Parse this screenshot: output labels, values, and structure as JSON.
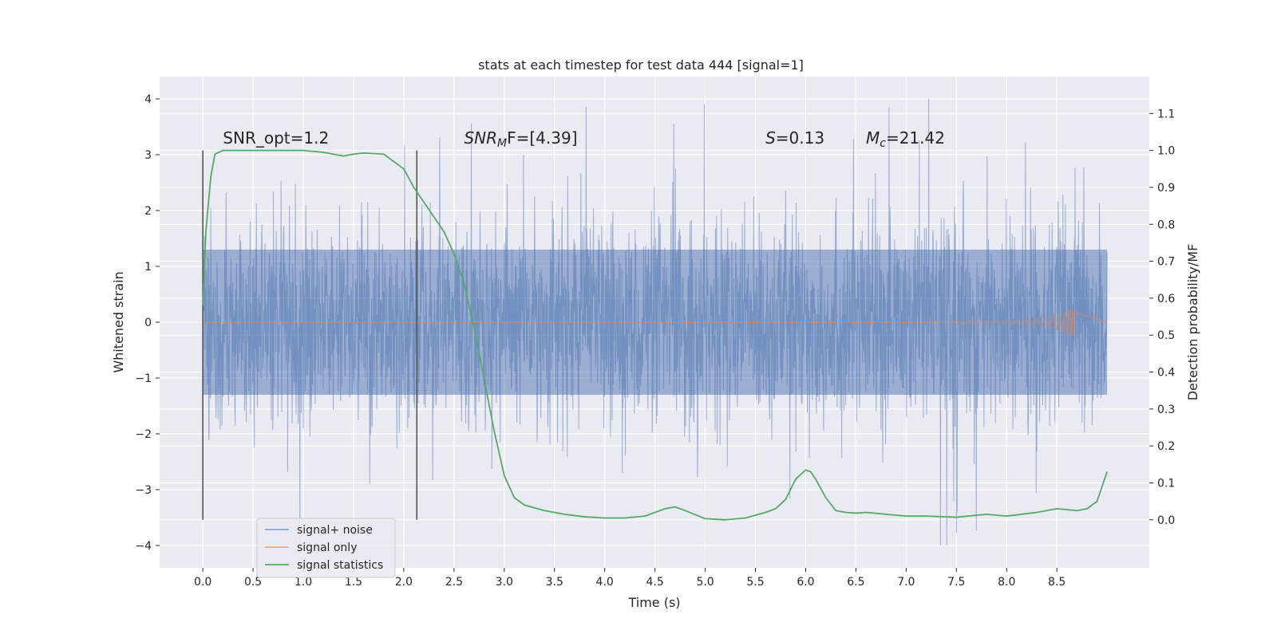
{
  "chart_data": {
    "type": "line",
    "title": "stats at each timestep for test data 444 [signal=1]",
    "xlabel": "Time (s)",
    "ylabel": "Whitened strain",
    "y2label": "Detection probability/MF",
    "xlim": [
      -0.43,
      9.42
    ],
    "ylim": [
      -4.4,
      4.4
    ],
    "y2lim": [
      -0.13,
      1.2
    ],
    "x_ticks": [
      "0.0",
      "0.5",
      "1.0",
      "1.5",
      "2.0",
      "2.5",
      "3.0",
      "3.5",
      "4.0",
      "4.5",
      "5.0",
      "5.5",
      "6.0",
      "6.5",
      "7.0",
      "7.5",
      "8.0",
      "8.5"
    ],
    "y_ticks": [
      "4",
      "3",
      "2",
      "1",
      "0",
      "−1",
      "−2",
      "−3",
      "−4"
    ],
    "y2_ticks": [
      "1.1",
      "1.0",
      "0.9",
      "0.8",
      "0.7",
      "0.6",
      "0.5",
      "0.4",
      "0.3",
      "0.2",
      "0.1",
      "0.0"
    ],
    "grid": true,
    "legend_position": "lower-left",
    "vlines": [
      0.0,
      2.13
    ],
    "annotations": [
      {
        "text": "SNR_opt=1.2",
        "at": [
          0.2,
          3.2
        ]
      },
      {
        "text_base": "SNR",
        "text_sub": "M",
        "text_rest": "F=[4.39]",
        "at": [
          2.6,
          3.2
        ]
      },
      {
        "text_base": "S",
        "text_rest": "=0.13",
        "at": [
          5.6,
          3.2
        ]
      },
      {
        "text_base": "M",
        "text_sub": "c",
        "text_rest": "=21.42",
        "at": [
          6.6,
          3.2
        ]
      }
    ],
    "series": [
      {
        "name": "signal+ noise",
        "axis": "left",
        "color": "#4c72b0",
        "style": "noisy-strain",
        "x_range": [
          0.0,
          9.0
        ],
        "band_envelope": 1.3,
        "peak_extent": [
          -4.0,
          4.0
        ]
      },
      {
        "name": "signal only",
        "axis": "left",
        "color": "#dd8452",
        "style": "chirp",
        "x": [
          0.0,
          7.0,
          7.5,
          8.0,
          8.3,
          8.5,
          8.6,
          8.67
        ],
        "amplitude": [
          0.0,
          0.01,
          0.02,
          0.04,
          0.07,
          0.13,
          0.2,
          0.27
        ]
      },
      {
        "name": "signal statistics",
        "axis": "right",
        "color": "#55a868",
        "style": "line",
        "x": [
          0.0,
          0.03,
          0.08,
          0.12,
          0.2,
          0.3,
          0.5,
          1.0,
          1.2,
          1.4,
          1.5,
          1.6,
          1.8,
          2.0,
          2.1,
          2.2,
          2.3,
          2.4,
          2.5,
          2.6,
          2.7,
          2.8,
          2.9,
          3.0,
          3.1,
          3.2,
          3.4,
          3.6,
          3.8,
          4.0,
          4.2,
          4.4,
          4.6,
          4.7,
          4.8,
          5.0,
          5.2,
          5.4,
          5.6,
          5.7,
          5.8,
          5.9,
          6.0,
          6.05,
          6.1,
          6.2,
          6.3,
          6.4,
          6.5,
          6.6,
          6.8,
          7.0,
          7.2,
          7.5,
          7.8,
          8.0,
          8.3,
          8.5,
          8.7,
          8.8,
          8.9,
          8.95,
          9.0
        ],
        "y": [
          0.58,
          0.78,
          0.93,
          0.99,
          1.0,
          1.0,
          1.0,
          1.0,
          0.995,
          0.985,
          0.99,
          0.993,
          0.99,
          0.95,
          0.9,
          0.86,
          0.82,
          0.78,
          0.72,
          0.64,
          0.52,
          0.38,
          0.24,
          0.12,
          0.06,
          0.04,
          0.025,
          0.015,
          0.008,
          0.005,
          0.005,
          0.01,
          0.03,
          0.035,
          0.025,
          0.003,
          0.0,
          0.005,
          0.02,
          0.03,
          0.055,
          0.11,
          0.135,
          0.13,
          0.11,
          0.06,
          0.025,
          0.02,
          0.018,
          0.02,
          0.015,
          0.01,
          0.01,
          0.007,
          0.015,
          0.01,
          0.02,
          0.03,
          0.025,
          0.03,
          0.05,
          0.09,
          0.13
        ]
      }
    ]
  }
}
